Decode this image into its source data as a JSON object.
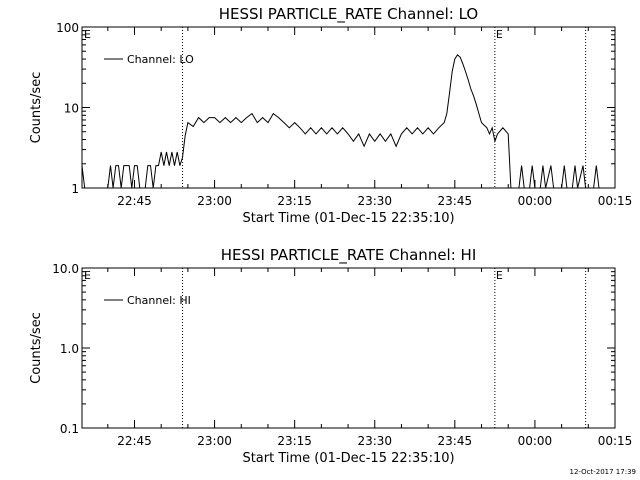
{
  "chart_data": [
    {
      "type": "line",
      "title": "HESSI PARTICLE_RATE Channel: LO",
      "xlabel": "Start Time (01-Dec-15 22:35:10)",
      "ylabel": "Counts/sec",
      "y_scale": "log",
      "ylim": [
        1,
        100
      ],
      "yticks": [
        "1",
        "10",
        "100"
      ],
      "xlim": [
        "22:35:10",
        "00:15:00"
      ],
      "xticks": [
        "22:45",
        "23:00",
        "23:15",
        "23:30",
        "23:45",
        "00:00",
        "00:15"
      ],
      "grid": false,
      "legend": {
        "placement": "top-left",
        "entries": [
          "Channel: LO"
        ]
      },
      "event_markers": [
        {
          "time": "22:54:00",
          "label": ""
        },
        {
          "time": "23:52:30",
          "label": "E"
        },
        {
          "time": "00:09:30",
          "label": ""
        }
      ],
      "corner_label": "E",
      "series": [
        {
          "name": "Channel: LO",
          "points": [
            [
              "22:35:10",
              1.9
            ],
            [
              "22:35:40",
              1
            ],
            [
              "22:36:00",
              1
            ],
            [
              "22:40:00",
              1
            ],
            [
              "22:40:30",
              1.9
            ],
            [
              "22:41:00",
              1
            ],
            [
              "22:41:30",
              1.9
            ],
            [
              "22:42:00",
              1.9
            ],
            [
              "22:42:30",
              1
            ],
            [
              "22:43:00",
              1.9
            ],
            [
              "22:44:00",
              1.9
            ],
            [
              "22:44:30",
              1
            ],
            [
              "22:45:00",
              1.9
            ],
            [
              "22:45:30",
              1.9
            ],
            [
              "22:46:00",
              1
            ],
            [
              "22:47:00",
              1
            ],
            [
              "22:47:30",
              1.9
            ],
            [
              "22:48:00",
              1.9
            ],
            [
              "22:48:30",
              1
            ],
            [
              "22:49:00",
              1.9
            ],
            [
              "22:49:30",
              1.9
            ],
            [
              "22:50:00",
              2.8
            ],
            [
              "22:50:30",
              1.9
            ],
            [
              "22:51:00",
              2.8
            ],
            [
              "22:51:30",
              1.9
            ],
            [
              "22:52:00",
              2.8
            ],
            [
              "22:52:30",
              1.9
            ],
            [
              "22:53:00",
              2.8
            ],
            [
              "22:53:30",
              1.9
            ],
            [
              "22:54:00",
              2.4
            ],
            [
              "22:54:30",
              4.5
            ],
            [
              "22:55:00",
              6.5
            ],
            [
              "22:56:00",
              5.8
            ],
            [
              "22:57:00",
              7.5
            ],
            [
              "22:58:00",
              6.5
            ],
            [
              "22:59:00",
              7.5
            ],
            [
              "23:00:00",
              7.5
            ],
            [
              "23:01:00",
              6.5
            ],
            [
              "23:02:00",
              7.5
            ],
            [
              "23:03:00",
              6.5
            ],
            [
              "23:04:00",
              7.5
            ],
            [
              "23:05:00",
              6.5
            ],
            [
              "23:06:00",
              7.5
            ],
            [
              "23:07:00",
              8.4
            ],
            [
              "23:08:00",
              6.5
            ],
            [
              "23:09:00",
              7.5
            ],
            [
              "23:10:00",
              6.5
            ],
            [
              "23:11:00",
              8.4
            ],
            [
              "23:12:00",
              7.5
            ],
            [
              "23:13:00",
              6.5
            ],
            [
              "23:14:00",
              5.6
            ],
            [
              "23:15:00",
              6.5
            ],
            [
              "23:16:00",
              5.6
            ],
            [
              "23:17:00",
              4.7
            ],
            [
              "23:18:00",
              5.6
            ],
            [
              "23:19:00",
              4.7
            ],
            [
              "23:20:00",
              5.6
            ],
            [
              "23:21:00",
              4.7
            ],
            [
              "23:22:00",
              5.6
            ],
            [
              "23:23:00",
              4.7
            ],
            [
              "23:24:00",
              5.6
            ],
            [
              "23:25:00",
              4.7
            ],
            [
              "23:26:00",
              3.8
            ],
            [
              "23:27:00",
              4.7
            ],
            [
              "23:28:00",
              3.3
            ],
            [
              "23:29:00",
              4.7
            ],
            [
              "23:30:00",
              3.8
            ],
            [
              "23:31:00",
              4.7
            ],
            [
              "23:32:00",
              3.8
            ],
            [
              "23:33:00",
              4.7
            ],
            [
              "23:34:00",
              3.3
            ],
            [
              "23:35:00",
              4.7
            ],
            [
              "23:36:00",
              5.6
            ],
            [
              "23:37:00",
              4.7
            ],
            [
              "23:38:00",
              5.6
            ],
            [
              "23:39:00",
              4.7
            ],
            [
              "23:40:00",
              5.6
            ],
            [
              "23:41:00",
              4.7
            ],
            [
              "23:42:00",
              5.6
            ],
            [
              "23:43:00",
              6.5
            ],
            [
              "23:43:30",
              8.4
            ],
            [
              "23:44:00",
              15
            ],
            [
              "23:44:30",
              28
            ],
            [
              "23:45:00",
              40
            ],
            [
              "23:45:30",
              45
            ],
            [
              "23:46:00",
              42
            ],
            [
              "23:46:30",
              35
            ],
            [
              "23:47:00",
              28
            ],
            [
              "23:47:30",
              22
            ],
            [
              "23:48:00",
              17
            ],
            [
              "23:48:30",
              14
            ],
            [
              "23:49:00",
              11
            ],
            [
              "23:49:30",
              8.4
            ],
            [
              "23:50:00",
              6.5
            ],
            [
              "23:51:00",
              5.6
            ],
            [
              "23:51:30",
              4.7
            ],
            [
              "23:52:00",
              5.6
            ],
            [
              "23:52:30",
              3.8
            ],
            [
              "23:53:00",
              4.7
            ],
            [
              "23:54:00",
              5.6
            ],
            [
              "23:55:00",
              4.7
            ],
            [
              "23:55:30",
              1
            ],
            [
              "23:57:00",
              1
            ],
            [
              "23:57:30",
              1.9
            ],
            [
              "23:58:00",
              1
            ],
            [
              "23:59:00",
              1
            ],
            [
              "23:59:30",
              1.9
            ],
            [
              "00:00:00",
              1
            ],
            [
              "00:01:00",
              1
            ],
            [
              "00:01:30",
              1.9
            ],
            [
              "00:02:00",
              1
            ],
            [
              "00:03:00",
              1.9
            ],
            [
              "00:03:30",
              1
            ],
            [
              "00:05:00",
              1
            ],
            [
              "00:05:30",
              1.9
            ],
            [
              "00:06:00",
              1
            ],
            [
              "00:07:00",
              1
            ],
            [
              "00:07:30",
              1.9
            ],
            [
              "00:08:00",
              1
            ],
            [
              "00:09:00",
              1.9
            ],
            [
              "00:09:30",
              1
            ],
            [
              "00:11:00",
              1
            ],
            [
              "00:11:30",
              1.9
            ],
            [
              "00:12:00",
              1
            ]
          ]
        }
      ]
    },
    {
      "type": "line",
      "title": "HESSI PARTICLE_RATE Channel: HI",
      "xlabel": "Start Time (01-Dec-15 22:35:10)",
      "ylabel": "Counts/sec",
      "y_scale": "log",
      "ylim": [
        0.1,
        10
      ],
      "yticks": [
        "0.1",
        "1.0",
        "10.0"
      ],
      "xlim": [
        "22:35:10",
        "00:15:00"
      ],
      "xticks": [
        "22:45",
        "23:00",
        "23:15",
        "23:30",
        "23:45",
        "00:00",
        "00:15"
      ],
      "grid": false,
      "legend": {
        "placement": "top-left",
        "entries": [
          "Channel: HI"
        ]
      },
      "event_markers": [
        {
          "time": "22:54:00",
          "label": ""
        },
        {
          "time": "23:52:30",
          "label": "E"
        },
        {
          "time": "00:09:30",
          "label": ""
        }
      ],
      "corner_label": "E",
      "series": [
        {
          "name": "Channel: HI",
          "points": []
        }
      ]
    }
  ],
  "footer": {
    "timestamp": "12-Oct-2017 17:39"
  }
}
